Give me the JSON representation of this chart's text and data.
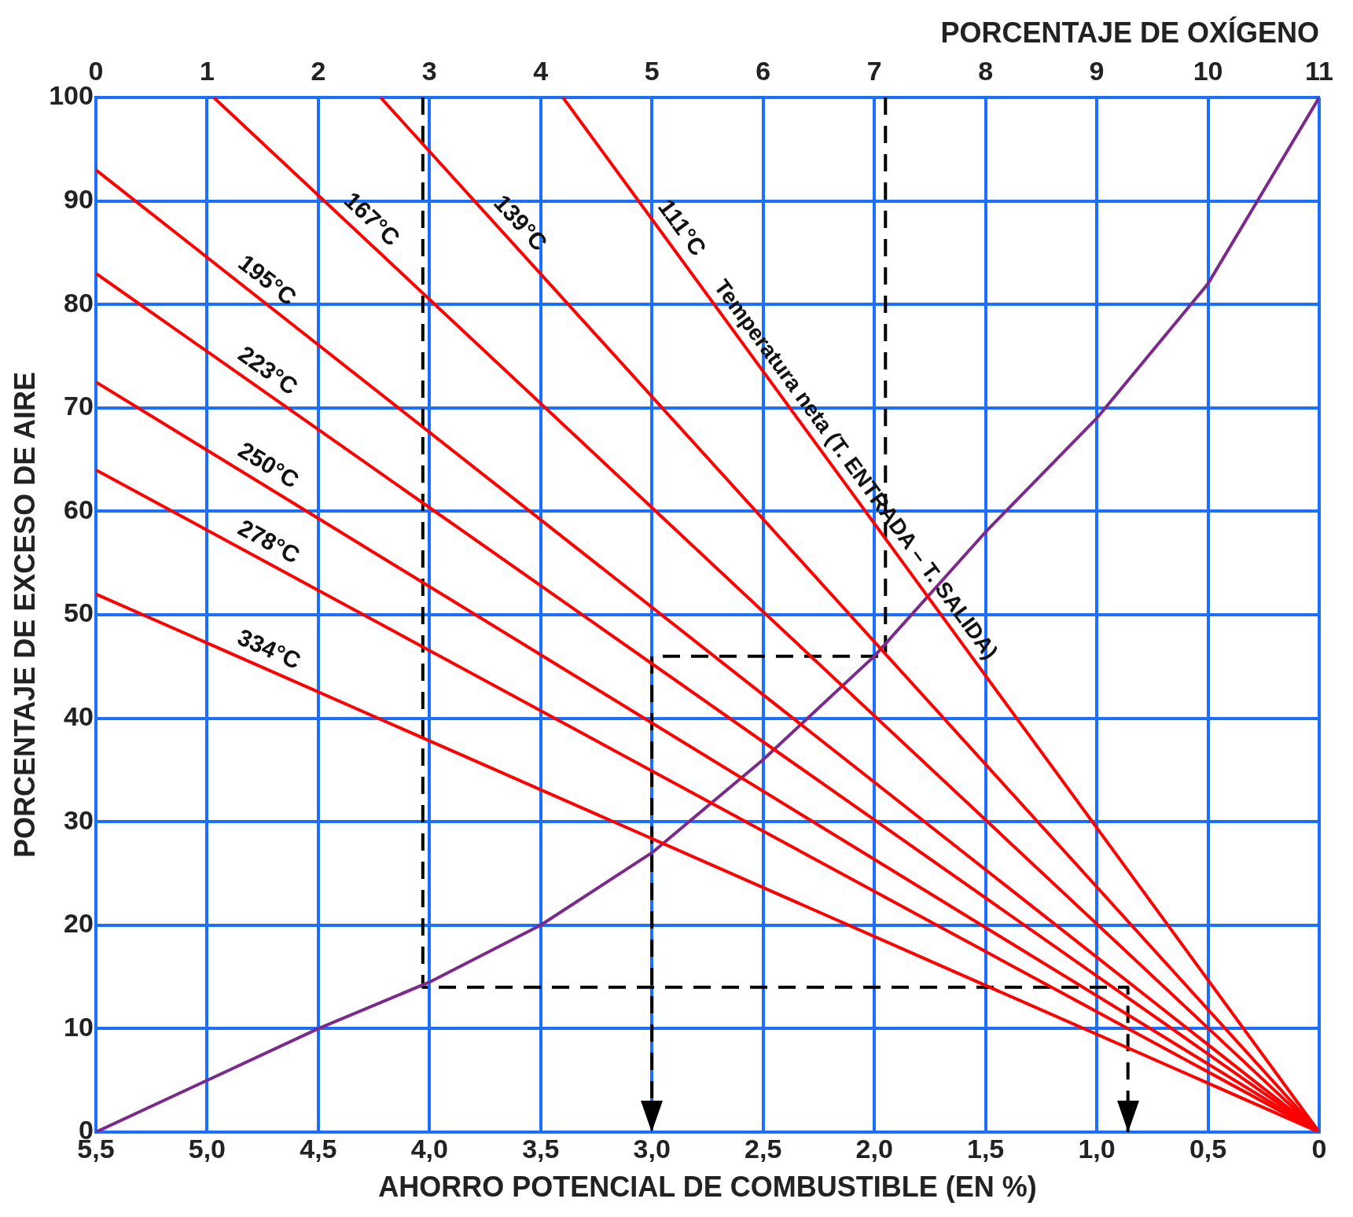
{
  "chart_data": {
    "type": "line",
    "xlabel": "AHORRO POTENCIAL DE COMBUSTIBLE (EN %)",
    "x2label": "PORCENTAJE DE OXÍGENO",
    "ylabel": "PORCENTAJE DE EXCESO DE AIRE",
    "xlim": [
      5.5,
      0
    ],
    "xticks": [
      {
        "value": 5.5,
        "label": "5,5"
      },
      {
        "value": 5,
        "label": "5,0"
      },
      {
        "value": 4.5,
        "label": "4,5"
      },
      {
        "value": 4,
        "label": "4,0"
      },
      {
        "value": 3.5,
        "label": "3,5"
      },
      {
        "value": 3,
        "label": "3,0"
      },
      {
        "value": 2.5,
        "label": "2,5"
      },
      {
        "value": 2,
        "label": "2,0"
      },
      {
        "value": 1.5,
        "label": "1,5"
      },
      {
        "value": 1,
        "label": "1,0"
      },
      {
        "value": 0.5,
        "label": "0,5"
      },
      0
    ],
    "x2lim": [
      0,
      11
    ],
    "x2ticks": [
      0,
      1,
      2,
      3,
      4,
      5,
      6,
      7,
      8,
      9,
      10,
      11
    ],
    "ylim": [
      0,
      100
    ],
    "yticks": [
      0,
      10,
      20,
      30,
      40,
      50,
      60,
      70,
      80,
      90,
      100
    ],
    "grid": true,
    "legend": false,
    "marker": "none",
    "series": [
      {
        "name": "111°C",
        "color": "#ff0000",
        "x": [
          3.4,
          0
        ],
        "values": [
          100,
          0
        ]
      },
      {
        "name": "139°C",
        "color": "#ff0000",
        "x": [
          4.22,
          0
        ],
        "values": [
          100,
          0
        ]
      },
      {
        "name": "167°C",
        "color": "#ff0000",
        "x": [
          4.97,
          0
        ],
        "values": [
          100,
          0
        ]
      },
      {
        "name": "195°C",
        "color": "#ff0000",
        "x": [
          5.5,
          0
        ],
        "values": [
          93,
          0
        ]
      },
      {
        "name": "223°C",
        "color": "#ff0000",
        "x": [
          5.5,
          0
        ],
        "values": [
          83,
          0
        ]
      },
      {
        "name": "250°C",
        "color": "#ff0000",
        "x": [
          5.5,
          0
        ],
        "values": [
          72.5,
          0
        ]
      },
      {
        "name": "278°C",
        "color": "#ff0000",
        "x": [
          5.5,
          0
        ],
        "values": [
          64,
          0
        ]
      },
      {
        "name": "334°C",
        "color": "#ff0000",
        "x": [
          5.5,
          0
        ],
        "values": [
          52,
          0
        ]
      },
      {
        "color": "#7b2a8c",
        "x": [
          5.5,
          5,
          4.5,
          4,
          3.5,
          3,
          2.5,
          2,
          1.5,
          1,
          0.5,
          0
        ],
        "values": [
          0,
          5,
          10,
          14.5,
          20,
          27,
          36,
          46,
          58,
          69,
          82,
          100
        ]
      },
      {
        "color": "#000000",
        "line_style": "dashed",
        "x": [
          4.03,
          4.03,
          0.86,
          0.86
        ],
        "values": [
          100,
          14,
          14,
          0
        ]
      },
      {
        "color": "#000000",
        "line_style": "dashed",
        "x": [
          1.95,
          1.95,
          3,
          3
        ],
        "values": [
          100,
          46,
          46,
          0
        ]
      }
    ],
    "annotations": [
      {
        "text": "Temperatura neta (T. ENTRADA – T. SALIDA)",
        "x": 2.15,
        "y": 63
      }
    ]
  }
}
